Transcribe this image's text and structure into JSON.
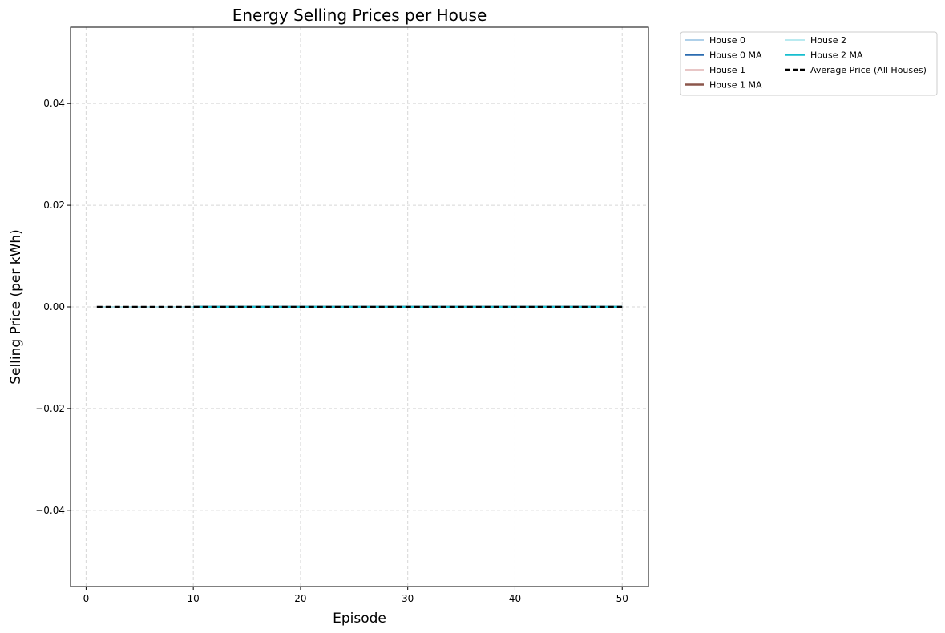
{
  "chart_data": {
    "type": "line",
    "title": "Energy Selling Prices per House",
    "xlabel": "Episode",
    "ylabel": "Selling Price (per kWh)",
    "xlim": [
      -1.45,
      52.45
    ],
    "ylim": [
      -0.055,
      0.055
    ],
    "xticks": [
      0,
      10,
      20,
      30,
      40,
      50
    ],
    "xtick_labels": [
      "0",
      "10",
      "20",
      "30",
      "40",
      "50"
    ],
    "yticks": [
      -0.04,
      -0.02,
      0.0,
      0.02,
      0.04
    ],
    "ytick_labels": [
      "−0.04",
      "−0.02",
      "0.00",
      "0.02",
      "0.04"
    ],
    "grid": true,
    "legend_position": "outside top-right",
    "series": [
      {
        "name": "House 0",
        "color": "#7fb3dc",
        "style": "solid",
        "thick": false,
        "x_start": 1,
        "x_end": 50,
        "value": 0.0
      },
      {
        "name": "House 0 MA",
        "color": "#2b6cb0",
        "style": "solid",
        "thick": true,
        "x_start": 10,
        "x_end": 50,
        "value": 0.0
      },
      {
        "name": "House 1",
        "color": "#d9a3a3",
        "style": "solid",
        "thick": false,
        "x_start": 1,
        "x_end": 50,
        "value": 0.0
      },
      {
        "name": "House 1 MA",
        "color": "#8c564b",
        "style": "solid",
        "thick": true,
        "x_start": 10,
        "x_end": 50,
        "value": 0.0
      },
      {
        "name": "House 2",
        "color": "#8fdde6",
        "style": "solid",
        "thick": false,
        "x_start": 1,
        "x_end": 50,
        "value": 0.0
      },
      {
        "name": "House 2 MA",
        "color": "#17becf",
        "style": "solid",
        "thick": true,
        "x_start": 10,
        "x_end": 50,
        "value": 0.0
      },
      {
        "name": "Average Price (All Houses)",
        "color": "#000000",
        "style": "dashed",
        "thick": true,
        "x_start": 1,
        "x_end": 50,
        "value": 0.0
      }
    ]
  }
}
